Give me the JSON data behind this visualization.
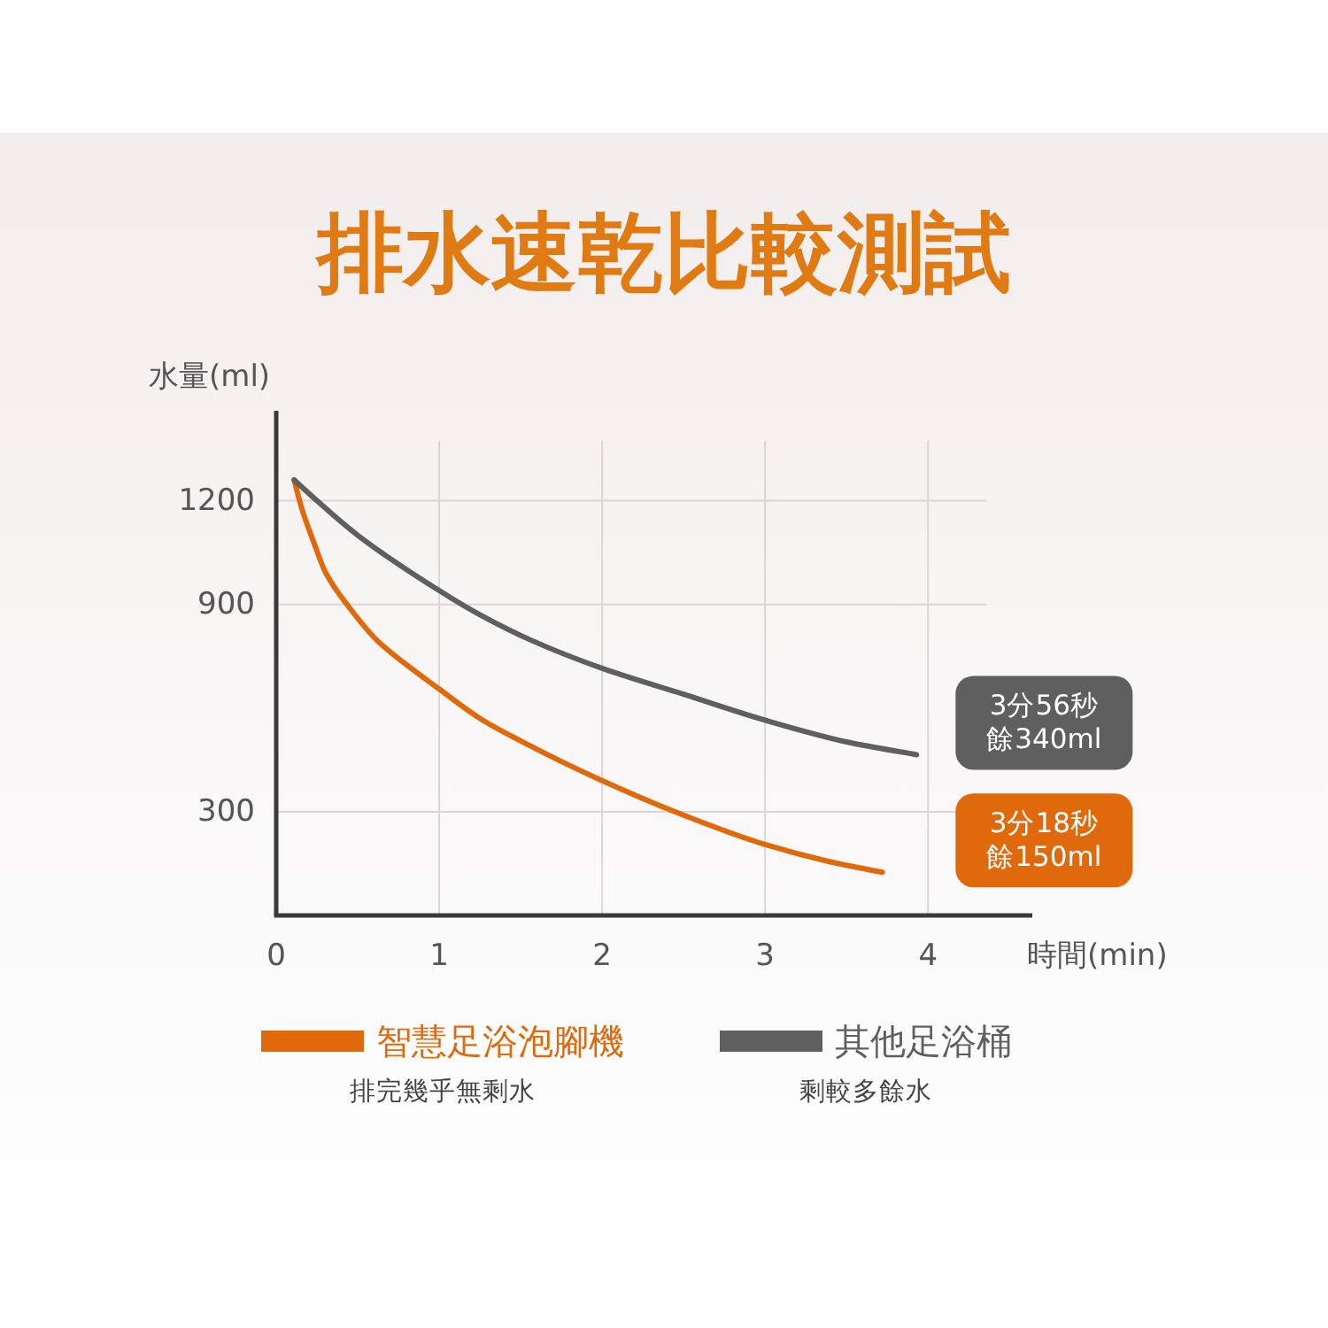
{
  "chart_data": {
    "type": "line",
    "title": "排水速乾比較測試",
    "xlabel": "時間(min)",
    "ylabel": "水量(ml)",
    "xlim": [
      0,
      4.64
    ],
    "xticks": [
      0,
      1,
      2,
      3,
      4
    ],
    "ylim": [
      0,
      1460
    ],
    "yticks": [
      300,
      900,
      1200
    ],
    "grid": true,
    "legend": "bottom",
    "line_style": "solid",
    "series": [
      {
        "name": "智慧足浴泡腳機",
        "color": "#e0690c",
        "x": [
          0.11,
          0.155,
          0.23,
          0.3,
          0.45,
          0.62,
          0.8,
          1.0,
          1.25,
          1.5,
          2.0,
          2.5,
          3.0,
          3.4,
          3.72
        ],
        "values": [
          1260,
          1180,
          1080,
          995,
          890,
          795,
          725,
          655,
          570,
          505,
          390,
          290,
          205,
          155,
          125
        ]
      },
      {
        "name": "其他足浴桶",
        "color": "#5f5f5f",
        "x": [
          0.11,
          0.25,
          0.5,
          1.0,
          1.25,
          1.57,
          2.0,
          2.5,
          3.0,
          3.52,
          3.93
        ],
        "values": [
          1260,
          1200,
          1100,
          940,
          870,
          795,
          715,
          640,
          565,
          500,
          465
        ]
      }
    ],
    "annotations": [
      "3分18秒餘150ml",
      "3分56秒餘340ml",
      "排完幾乎無剩水",
      "剩較多餘水"
    ]
  }
}
